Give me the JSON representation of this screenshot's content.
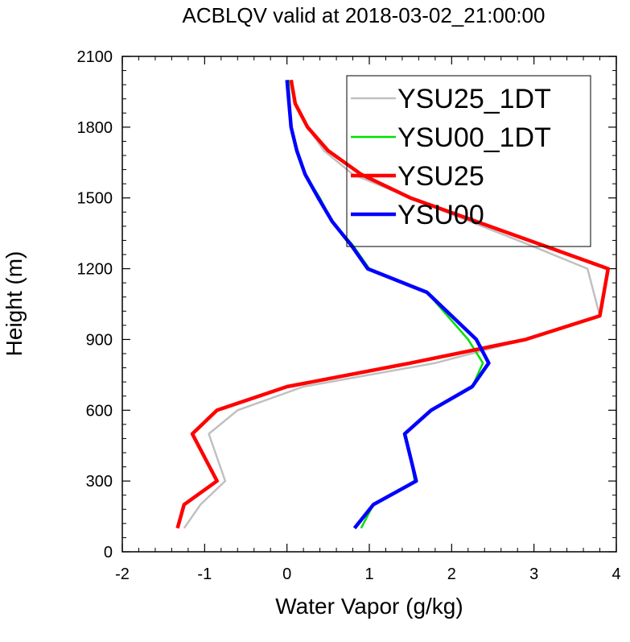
{
  "chart_data": {
    "type": "line",
    "title": "ACBLQV valid at 2018-03-02_21:00:00",
    "xlabel": "Water Vapor (g/kg)",
    "ylabel": "Height (m)",
    "xlim": [
      -2,
      4
    ],
    "ylim": [
      0,
      2100
    ],
    "xticks": [
      "-2",
      "-1",
      "0",
      "1",
      "2",
      "3",
      "4"
    ],
    "yticks": [
      "0",
      "300",
      "600",
      "900",
      "1200",
      "1500",
      "1800",
      "2100"
    ],
    "legend_position": "top-right",
    "grid": false,
    "series": [
      {
        "name": "YSU25_1DT",
        "color": "#c0c0c0",
        "width": "thin",
        "points": [
          [
            -1.25,
            100
          ],
          [
            -1.05,
            200
          ],
          [
            -0.75,
            300
          ],
          [
            -0.95,
            500
          ],
          [
            -0.6,
            600
          ],
          [
            0.2,
            700
          ],
          [
            1.8,
            800
          ],
          [
            2.9,
            900
          ],
          [
            3.8,
            1000
          ],
          [
            3.65,
            1200
          ],
          [
            2.95,
            1300
          ],
          [
            1.5,
            1500
          ],
          [
            0.8,
            1600
          ],
          [
            0.45,
            1700
          ],
          [
            0.25,
            1800
          ],
          [
            0.1,
            1900
          ],
          [
            0.05,
            2000
          ]
        ]
      },
      {
        "name": "YSU00_1DT",
        "color": "#00e000",
        "width": "thin",
        "points": [
          [
            0.9,
            100
          ],
          [
            1.05,
            200
          ],
          [
            1.55,
            300
          ],
          [
            1.5,
            400
          ],
          [
            1.42,
            500
          ],
          [
            1.75,
            600
          ],
          [
            2.25,
            700
          ],
          [
            2.38,
            800
          ],
          [
            2.2,
            900
          ],
          [
            1.7,
            1100
          ],
          [
            1.0,
            1200
          ],
          [
            0.8,
            1300
          ],
          [
            0.55,
            1400
          ],
          [
            0.4,
            1500
          ],
          [
            0.22,
            1600
          ],
          [
            0.13,
            1700
          ],
          [
            0.05,
            1800
          ],
          [
            0.02,
            2000
          ]
        ]
      },
      {
        "name": "YSU25",
        "color": "#ff0000",
        "width": "thick",
        "points": [
          [
            -1.33,
            100
          ],
          [
            -1.25,
            200
          ],
          [
            -0.85,
            300
          ],
          [
            -1.15,
            500
          ],
          [
            -0.85,
            600
          ],
          [
            0.0,
            700
          ],
          [
            1.5,
            800
          ],
          [
            2.9,
            900
          ],
          [
            3.8,
            1000
          ],
          [
            3.9,
            1200
          ],
          [
            3.1,
            1300
          ],
          [
            1.5,
            1500
          ],
          [
            0.9,
            1600
          ],
          [
            0.5,
            1700
          ],
          [
            0.25,
            1800
          ],
          [
            0.1,
            1900
          ],
          [
            0.05,
            2000
          ]
        ]
      },
      {
        "name": "YSU00",
        "color": "#0000ff",
        "width": "thick",
        "points": [
          [
            0.82,
            100
          ],
          [
            1.05,
            200
          ],
          [
            1.57,
            300
          ],
          [
            1.5,
            400
          ],
          [
            1.43,
            500
          ],
          [
            1.75,
            600
          ],
          [
            2.25,
            700
          ],
          [
            2.45,
            800
          ],
          [
            2.3,
            900
          ],
          [
            1.7,
            1100
          ],
          [
            0.98,
            1200
          ],
          [
            0.78,
            1300
          ],
          [
            0.55,
            1400
          ],
          [
            0.38,
            1500
          ],
          [
            0.22,
            1600
          ],
          [
            0.12,
            1700
          ],
          [
            0.05,
            1800
          ],
          [
            0.0,
            2000
          ]
        ]
      }
    ]
  }
}
